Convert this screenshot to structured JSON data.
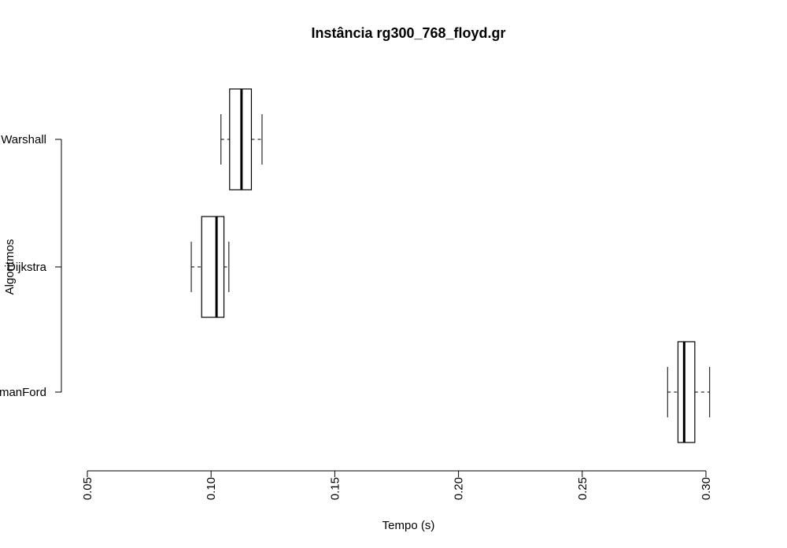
{
  "chart_data": {
    "type": "boxplot",
    "orientation": "horizontal",
    "title": "Instância rg300_768_floyd.gr",
    "xlabel": "Tempo (s)",
    "ylabel": "Algoritmos",
    "xlim": [
      0.05,
      0.3
    ],
    "xticks": [
      "0.05",
      "0.10",
      "0.15",
      "0.20",
      "0.25",
      "0.30"
    ],
    "tick_values": [
      0.05,
      0.1,
      0.15,
      0.2,
      0.25,
      0.3
    ],
    "categories": [
      "FloydWarshall",
      "Dijkstra",
      "BellmanFord"
    ],
    "category_labels_visible": [
      "Warshall",
      "Dijkstra",
      "manFord"
    ],
    "boxes": [
      {
        "name": "FloydWarshall",
        "min": 0.104,
        "q1": 0.1075,
        "median": 0.1123,
        "q3": 0.1163,
        "max": 0.1206
      },
      {
        "name": "Dijkstra",
        "min": 0.092,
        "q1": 0.0962,
        "median": 0.1022,
        "q3": 0.1052,
        "max": 0.1072
      },
      {
        "name": "BellmanFord",
        "min": 0.2845,
        "q1": 0.2887,
        "median": 0.2912,
        "q3": 0.2955,
        "max": 0.3015
      }
    ]
  }
}
